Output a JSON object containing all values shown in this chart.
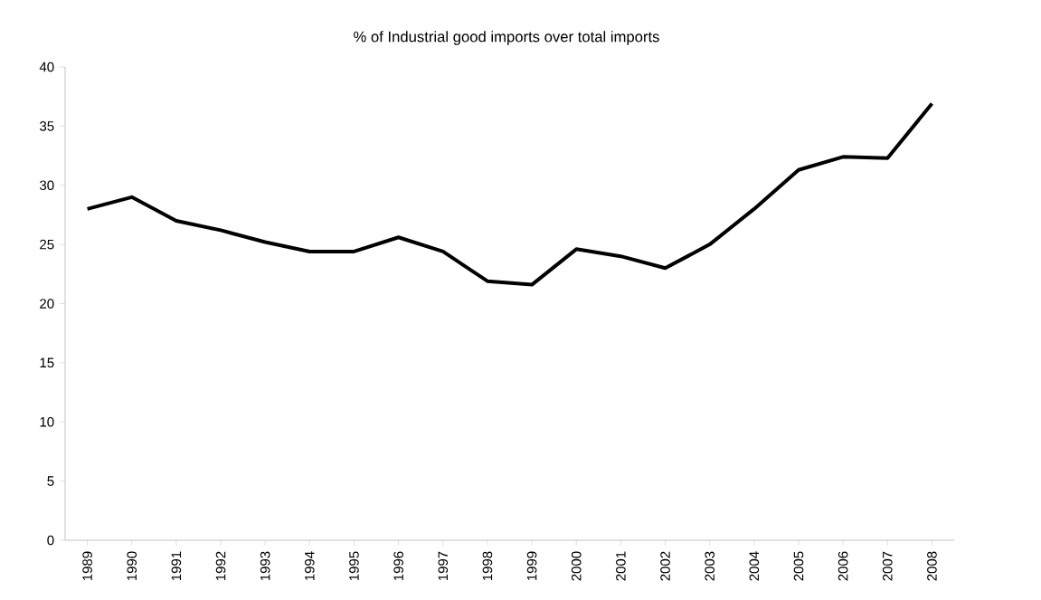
{
  "chart_data": {
    "type": "line",
    "title": "% of Industrial good imports over total imports",
    "categories": [
      "1989",
      "1990",
      "1991",
      "1992",
      "1993",
      "1994",
      "1995",
      "1996",
      "1997",
      "1998",
      "1999",
      "2000",
      "2001",
      "2002",
      "2003",
      "2004",
      "2005",
      "2006",
      "2007",
      "2008"
    ],
    "series": [
      {
        "color": "#000000",
        "values": [
          28.0,
          29.0,
          27.0,
          26.2,
          25.2,
          24.4,
          24.4,
          25.6,
          24.4,
          21.9,
          21.6,
          24.6,
          24.0,
          23.0,
          25.0,
          28.0,
          31.3,
          32.4,
          32.3,
          36.9
        ]
      }
    ],
    "ylim": [
      0,
      40
    ],
    "yticks": [
      0,
      5,
      10,
      15,
      20,
      25,
      30,
      35,
      40
    ],
    "grid": false,
    "marker": "none",
    "line_style": "solid"
  }
}
